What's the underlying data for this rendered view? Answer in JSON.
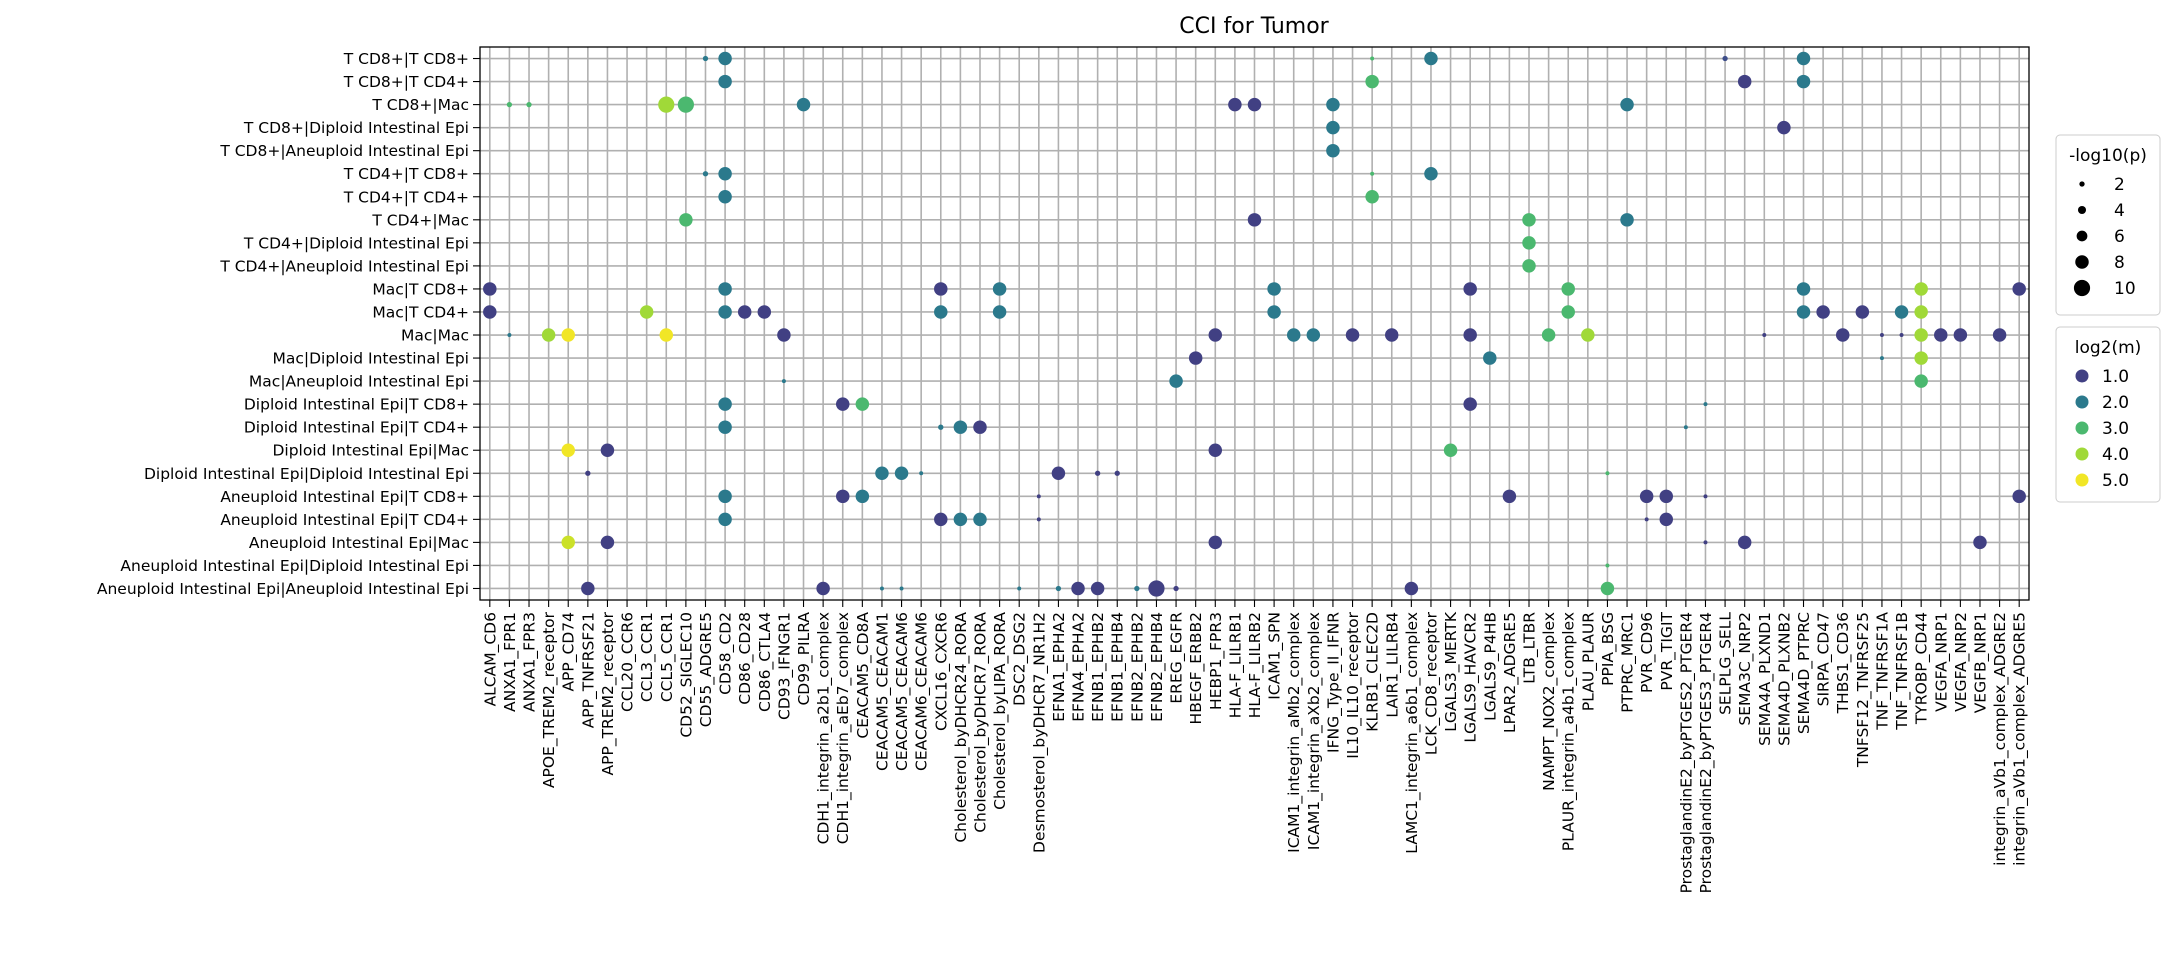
{
  "chart_data": {
    "type": "scatter",
    "title": "CCI for Tumor",
    "xlabel": "",
    "ylabel": "",
    "grid": true,
    "legend_placement": "right",
    "size_legend": {
      "title": "-log10(p)",
      "values": [
        "2",
        "4",
        "6",
        "8",
        "10"
      ]
    },
    "color_legend": {
      "title": "log2(m)",
      "values": [
        "1.0",
        "2.0",
        "3.0",
        "4.0",
        "5.0"
      ]
    },
    "colors": [
      "#472c7a",
      "#3b528b",
      "#21918c",
      "#5ec962",
      "#b5de2b",
      "#fde725"
    ],
    "x_categories": [
      "ALCAM_CD6",
      "ANXA1_FPR1",
      "ANXA1_FPR3",
      "APOE_TREM2_receptor",
      "APP_CD74",
      "APP_TNFRSF21",
      "APP_TREM2_receptor",
      "CCL20_CCR6",
      "CCL3_CCR1",
      "CCL5_CCR1",
      "CD52_SIGLEC10",
      "CD55_ADGRE5",
      "CD58_CD2",
      "CD86_CD28",
      "CD86_CTLA4",
      "CD93_IFNGR1",
      "CD99_PILRA",
      "CDH1_integrin_a2b1_complex",
      "CDH1_integrin_aEb7_complex",
      "CEACAM5_CD8A",
      "CEACAM5_CEACAM1",
      "CEACAM5_CEACAM6",
      "CEACAM6_CEACAM6",
      "CXCL16_CXCR6",
      "Cholesterol_byDHCR24_RORA",
      "Cholesterol_byDHCR7_RORA",
      "Cholesterol_byLIPA_RORA",
      "DSC2_DSG2",
      "Desmosterol_byDHCR7_NR1H2",
      "EFNA1_EPHA2",
      "EFNA4_EPHA2",
      "EFNB1_EPHB2",
      "EFNB1_EPHB4",
      "EFNB2_EPHB2",
      "EFNB2_EPHB4",
      "EREG_EGFR",
      "HBEGF_ERBB2",
      "HEBP1_FPR3",
      "HLA-F_LILRB1",
      "HLA-F_LILRB2",
      "ICAM1_SPN",
      "ICAM1_integrin_aMb2_complex",
      "ICAM1_integrin_aXb2_complex",
      "IFNG_Type_II_IFNR",
      "IL10_IL10_receptor",
      "KLRB1_CLEC2D",
      "LAIR1_LILRB4",
      "LAMC1_integrin_a6b1_complex",
      "LCK_CD8_receptor",
      "LGALS3_MERTK",
      "LGALS9_HAVCR2",
      "LGALS9_P4HB",
      "LPAR2_ADGRE5",
      "LTB_LTBR",
      "NAMPT_NOX2_complex",
      "PLAUR_integrin_a4b1_complex",
      "PLAU_PLAUR",
      "PPIA_BSG",
      "PTPRC_MRC1",
      "PVR_CD96",
      "PVR_TIGIT",
      "ProstaglandinE2_byPTGES2_PTGER4",
      "ProstaglandinE2_byPTGES3_PTGER4",
      "SELPLG_SELL",
      "SEMA3C_NRP2",
      "SEMA4A_PLXND1",
      "SEMA4D_PLXNB2",
      "SEMA4D_PTPRC",
      "SIRPA_CD47",
      "THBS1_CD36",
      "TNFSF12_TNFRSF25",
      "TNF_TNFRSF1A",
      "TNF_TNFRSF1B",
      "TYROBP_CD44",
      "VEGFA_NRP1",
      "VEGFA_NRP2",
      "VEGFB_NRP1",
      "integrin_aVb1_complex_ADGRE2",
      "integrin_aVb1_complex_ADGRE5"
    ],
    "y_categories": [
      "T CD8+|T CD8+",
      "T CD8+|T CD4+",
      "T CD8+|Mac",
      "T CD8+|Diploid Intestinal Epi",
      "T CD8+|Aneuploid Intestinal Epi",
      "T CD4+|T CD8+",
      "T CD4+|T CD4+",
      "T CD4+|Mac",
      "T CD4+|Diploid Intestinal Epi",
      "T CD4+|Aneuploid Intestinal Epi",
      "Mac|T CD8+",
      "Mac|T CD4+",
      "Mac|Mac",
      "Mac|Diploid Intestinal Epi",
      "Mac|Aneuploid Intestinal Epi",
      "Diploid Intestinal Epi|T CD8+",
      "Diploid Intestinal Epi|T CD4+",
      "Diploid Intestinal Epi|Mac",
      "Diploid Intestinal Epi|Diploid Intestinal Epi",
      "Aneuploid Intestinal Epi|T CD8+",
      "Aneuploid Intestinal Epi|T CD4+",
      "Aneuploid Intestinal Epi|Mac",
      "Aneuploid Intestinal Epi|Diploid Intestinal Epi",
      "Aneuploid Intestinal Epi|Aneuploid Intestinal Epi"
    ],
    "points": [
      [
        11,
        0,
        2,
        2
      ],
      [
        12,
        0,
        8,
        2.0
      ],
      [
        45,
        0,
        1,
        3.0
      ],
      [
        48,
        0,
        8,
        2.0
      ],
      [
        63,
        0,
        2,
        1.3
      ],
      [
        67,
        0,
        8,
        2.0
      ],
      [
        12,
        1,
        8,
        2.0
      ],
      [
        45,
        1,
        8,
        3.0
      ],
      [
        64,
        1,
        8,
        1.0
      ],
      [
        67,
        1,
        8,
        2.0
      ],
      [
        1,
        2,
        2,
        3.0
      ],
      [
        2,
        2,
        2,
        3.0
      ],
      [
        9,
        2,
        10,
        4.0
      ],
      [
        10,
        2,
        10,
        3.0
      ],
      [
        16,
        2,
        8,
        2.0
      ],
      [
        38,
        2,
        8,
        1.0
      ],
      [
        39,
        2,
        8,
        1.0
      ],
      [
        43,
        2,
        8,
        2.0
      ],
      [
        58,
        2,
        8,
        2.0
      ],
      [
        43,
        3,
        8,
        2.0
      ],
      [
        66,
        3,
        8,
        1.0
      ],
      [
        43,
        4,
        8,
        2.0
      ],
      [
        11,
        5,
        2,
        2
      ],
      [
        12,
        5,
        8,
        2.0
      ],
      [
        45,
        5,
        1,
        3.0
      ],
      [
        48,
        5,
        8,
        2.0
      ],
      [
        12,
        6,
        8,
        2.0
      ],
      [
        45,
        6,
        8,
        3.0
      ],
      [
        10,
        7,
        8,
        3.0
      ],
      [
        39,
        7,
        8,
        1.0
      ],
      [
        53,
        7,
        8,
        3.0
      ],
      [
        58,
        7,
        8,
        2.0
      ],
      [
        53,
        8,
        8,
        3.0
      ],
      [
        53,
        9,
        8,
        3.0
      ],
      [
        0,
        10,
        8,
        1.0
      ],
      [
        12,
        10,
        8,
        2.0
      ],
      [
        23,
        10,
        8,
        1.0
      ],
      [
        26,
        10,
        8,
        2.0
      ],
      [
        40,
        10,
        8,
        2.0
      ],
      [
        50,
        10,
        8,
        1.0
      ],
      [
        55,
        10,
        8,
        3.0
      ],
      [
        67,
        10,
        8,
        2.0
      ],
      [
        73,
        10,
        8,
        4.0
      ],
      [
        78,
        10,
        8,
        1.0
      ],
      [
        0,
        11,
        8,
        1.0
      ],
      [
        8,
        11,
        8,
        4.0
      ],
      [
        12,
        11,
        8,
        2.0
      ],
      [
        13,
        11,
        8,
        1.0
      ],
      [
        14,
        11,
        8,
        1.0
      ],
      [
        23,
        11,
        8,
        2.0
      ],
      [
        26,
        11,
        8,
        2.0
      ],
      [
        40,
        11,
        8,
        2.0
      ],
      [
        55,
        11,
        8,
        3.0
      ],
      [
        67,
        11,
        8,
        2.0
      ],
      [
        68,
        11,
        8,
        1.0
      ],
      [
        70,
        11,
        8,
        1.0
      ],
      [
        72,
        11,
        8,
        2.0
      ],
      [
        73,
        11,
        8,
        4.0
      ],
      [
        1,
        12,
        1,
        2.0
      ],
      [
        3,
        12,
        8,
        4.0
      ],
      [
        4,
        12,
        8,
        5.0
      ],
      [
        9,
        12,
        8,
        5.0
      ],
      [
        15,
        12,
        8,
        1.0
      ],
      [
        37,
        12,
        8,
        1.0
      ],
      [
        41,
        12,
        8,
        2.0
      ],
      [
        42,
        12,
        8,
        2.0
      ],
      [
        44,
        12,
        8,
        1.0
      ],
      [
        46,
        12,
        8,
        1.0
      ],
      [
        50,
        12,
        8,
        1.0
      ],
      [
        54,
        12,
        8,
        3.0
      ],
      [
        56,
        12,
        8,
        4.0
      ],
      [
        65,
        12,
        1,
        1.0
      ],
      [
        69,
        12,
        8,
        1.0
      ],
      [
        71,
        12,
        1,
        1.0
      ],
      [
        72,
        12,
        1,
        1.0
      ],
      [
        73,
        12,
        8,
        4.0
      ],
      [
        74,
        12,
        8,
        1.0
      ],
      [
        75,
        12,
        8,
        1.0
      ],
      [
        77,
        12,
        8,
        1.0
      ],
      [
        36,
        13,
        8,
        1.0
      ],
      [
        51,
        13,
        8,
        2.0
      ],
      [
        71,
        13,
        1,
        2.0
      ],
      [
        73,
        13,
        8,
        4.0
      ],
      [
        15,
        14,
        1,
        2.0
      ],
      [
        35,
        14,
        8,
        2.0
      ],
      [
        73,
        14,
        8,
        3.0
      ],
      [
        12,
        15,
        8,
        2.0
      ],
      [
        18,
        15,
        8,
        1.0
      ],
      [
        19,
        15,
        8,
        3.0
      ],
      [
        50,
        15,
        8,
        1.0
      ],
      [
        62,
        15,
        1,
        2.0
      ],
      [
        12,
        16,
        8,
        2.0
      ],
      [
        23,
        16,
        2,
        2.0
      ],
      [
        24,
        16,
        8,
        2.0
      ],
      [
        25,
        16,
        8,
        1.0
      ],
      [
        61,
        16,
        1,
        2.0
      ],
      [
        4,
        17,
        8,
        5.0
      ],
      [
        6,
        17,
        8,
        1.0
      ],
      [
        37,
        17,
        8,
        1.0
      ],
      [
        49,
        17,
        8,
        3.0
      ],
      [
        5,
        18,
        2,
        1.0
      ],
      [
        20,
        18,
        8,
        2.0
      ],
      [
        21,
        18,
        8,
        2.0
      ],
      [
        22,
        18,
        1,
        2.0
      ],
      [
        29,
        18,
        8,
        1.0
      ],
      [
        31,
        18,
        2,
        1.0
      ],
      [
        32,
        18,
        2,
        1.0
      ],
      [
        57,
        18,
        1,
        3.0
      ],
      [
        12,
        19,
        8,
        2.0
      ],
      [
        18,
        19,
        8,
        1.0
      ],
      [
        19,
        19,
        8,
        2.0
      ],
      [
        28,
        19,
        1,
        1.0
      ],
      [
        52,
        19,
        8,
        1.0
      ],
      [
        59,
        19,
        8,
        1.0
      ],
      [
        60,
        19,
        8,
        1.0
      ],
      [
        62,
        19,
        1,
        1.0
      ],
      [
        78,
        19,
        8,
        1.0
      ],
      [
        12,
        20,
        8,
        2.0
      ],
      [
        23,
        20,
        8,
        1.0
      ],
      [
        24,
        20,
        8,
        2.0
      ],
      [
        25,
        20,
        8,
        2.0
      ],
      [
        28,
        20,
        1,
        1.0
      ],
      [
        59,
        20,
        1,
        1.0
      ],
      [
        60,
        20,
        8,
        1.0
      ],
      [
        4,
        21,
        8,
        4.5
      ],
      [
        6,
        21,
        8,
        1.0
      ],
      [
        37,
        21,
        8,
        1.0
      ],
      [
        62,
        21,
        1,
        1.0
      ],
      [
        64,
        21,
        8,
        1.0
      ],
      [
        76,
        21,
        8,
        1.0
      ],
      [
        57,
        22,
        1,
        3.0
      ],
      [
        5,
        23,
        8,
        1.0
      ],
      [
        17,
        23,
        8,
        1.0
      ],
      [
        20,
        23,
        1,
        2.0
      ],
      [
        21,
        23,
        1,
        2.0
      ],
      [
        27,
        23,
        1,
        2.0
      ],
      [
        29,
        23,
        2,
        2.0
      ],
      [
        30,
        23,
        8,
        1.0
      ],
      [
        31,
        23,
        8,
        1.0
      ],
      [
        33,
        23,
        2,
        2.0
      ],
      [
        34,
        23,
        10,
        1.0
      ],
      [
        35,
        23,
        2,
        1.0
      ],
      [
        47,
        23,
        8,
        1.0
      ],
      [
        57,
        23,
        8,
        3.0
      ]
    ]
  }
}
